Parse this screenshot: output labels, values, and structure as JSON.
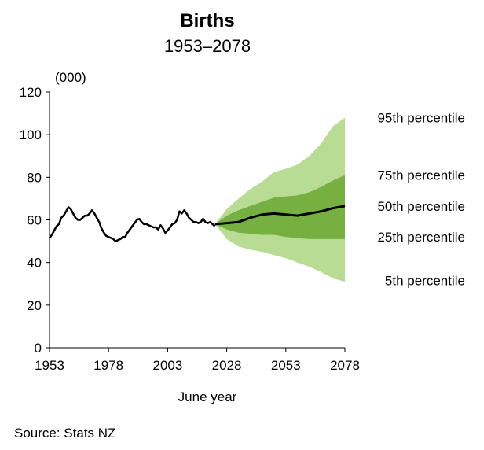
{
  "chart_data": {
    "type": "line",
    "title": "Births",
    "subtitle": "1953–2078",
    "ylabel": "(000)",
    "xlabel": "June year",
    "source": "Source: Stats NZ",
    "xlim": [
      1953,
      2078
    ],
    "ylim": [
      0,
      120
    ],
    "xticks": [
      1953,
      1978,
      2003,
      2028,
      2053,
      2078
    ],
    "yticks": [
      0,
      20,
      40,
      60,
      80,
      100,
      120
    ],
    "grid": false,
    "colors": {
      "outer_band": "#b8dc94",
      "inner_band": "#76b041",
      "median": "#000000"
    },
    "historical": {
      "x": [
        1953,
        1954,
        1955,
        1956,
        1957,
        1958,
        1959,
        1960,
        1961,
        1962,
        1963,
        1964,
        1965,
        1966,
        1967,
        1968,
        1969,
        1970,
        1971,
        1972,
        1973,
        1974,
        1975,
        1976,
        1977,
        1978,
        1979,
        1980,
        1981,
        1982,
        1983,
        1984,
        1985,
        1986,
        1987,
        1988,
        1989,
        1990,
        1991,
        1992,
        1993,
        1994,
        1995,
        1996,
        1997,
        1998,
        1999,
        2000,
        2001,
        2002,
        2003,
        2004,
        2005,
        2006,
        2007,
        2008,
        2009,
        2010,
        2011,
        2012,
        2013,
        2014,
        2015,
        2016,
        2017,
        2018,
        2019,
        2020,
        2021,
        2022,
        2023
      ],
      "y": [
        51.5,
        53,
        55,
        57,
        58,
        61,
        62,
        64,
        66,
        65,
        63,
        61,
        60,
        60,
        61,
        62,
        62,
        63,
        64.5,
        63,
        61,
        59,
        56,
        54,
        52.5,
        52,
        51.5,
        51,
        50,
        50.5,
        51,
        52,
        52,
        54,
        55.5,
        57,
        58.5,
        60,
        60.5,
        59,
        58,
        58,
        57.5,
        57,
        56.5,
        56.5,
        55.5,
        57.5,
        56,
        54,
        55,
        56.5,
        58,
        58.5,
        60,
        64,
        63,
        64.5,
        63,
        61,
        60,
        59,
        59,
        58.5,
        59,
        60.5,
        59,
        58.5,
        59,
        58,
        57
      ]
    },
    "projection": {
      "x": [
        2023,
        2028,
        2033,
        2038,
        2043,
        2048,
        2053,
        2058,
        2063,
        2068,
        2073,
        2078
      ],
      "series": [
        {
          "name": "95th percentile",
          "values": [
            58,
            65,
            70,
            74.5,
            78,
            82.5,
            84,
            86,
            90,
            96,
            104,
            108
          ]
        },
        {
          "name": "75th percentile",
          "values": [
            58,
            62,
            64.5,
            66.5,
            68.5,
            70.5,
            71,
            71.5,
            73,
            75.5,
            78.5,
            81
          ]
        },
        {
          "name": "50th percentile",
          "values": [
            58,
            58.5,
            59,
            61,
            62.5,
            63,
            62.5,
            62,
            63,
            64,
            65.5,
            66.5
          ]
        },
        {
          "name": "25th percentile",
          "values": [
            58,
            55.5,
            54,
            53.5,
            53,
            53,
            52,
            51.5,
            51,
            51,
            51,
            51
          ]
        },
        {
          "name": "5th percentile",
          "values": [
            58,
            51,
            47.5,
            46,
            45,
            43.5,
            42,
            40,
            38,
            35.5,
            32.5,
            31
          ]
        }
      ]
    },
    "legend_labels": [
      {
        "text": "95th percentile",
        "y": 108
      },
      {
        "text": "75th percentile",
        "y": 81
      },
      {
        "text": "50th percentile",
        "y": 66.5
      },
      {
        "text": "25th percentile",
        "y": 52
      },
      {
        "text": "5th percentile",
        "y": 31.5
      }
    ]
  }
}
